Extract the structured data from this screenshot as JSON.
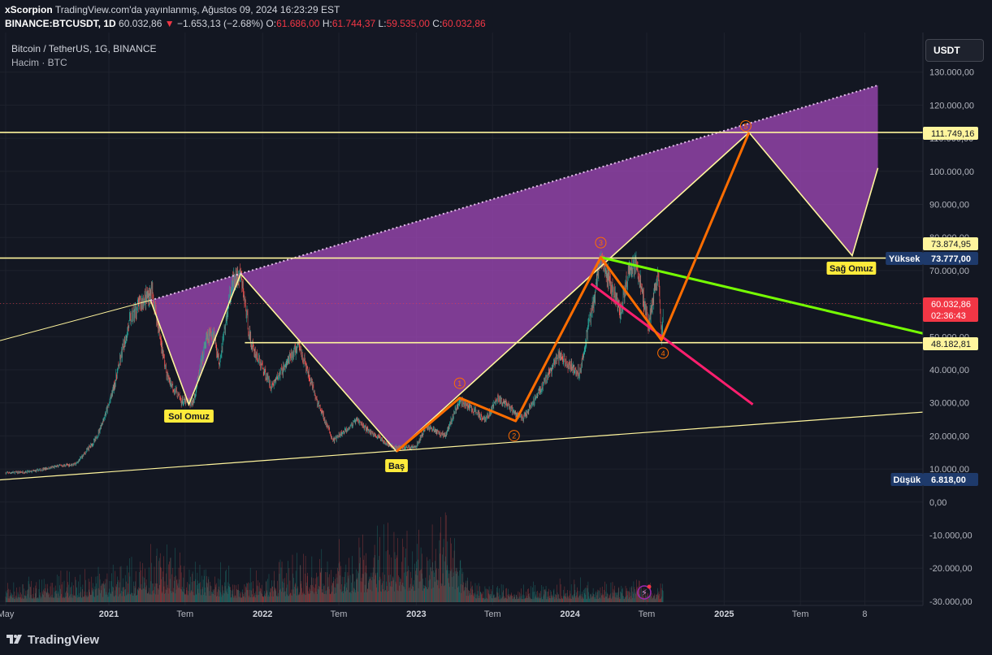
{
  "header": {
    "author": "xScorpion",
    "published": "TradingView.com'da yayınlanmış, Ağustos 09, 2024 16:23:29 EST",
    "symbol": "BINANCE:BTCUSDT, 1D",
    "price": "60.032,86",
    "change": "−1.653,13 (−2.68%)",
    "o_label": "O:",
    "o_val": "61.686,00",
    "h_label": "H:",
    "h_val": "61.744,37",
    "l_label": "L:",
    "l_val": "59.535,00",
    "c_label": "C:",
    "c_val": "60.032,86"
  },
  "legend": {
    "title": "Bitcoin / TetherUS, 1G, BINANCE",
    "volume": "Hacim · BTC"
  },
  "currency_button": "USDT",
  "branding": "TradingView",
  "colors": {
    "background": "#131722",
    "up": "#26a69a",
    "down": "#ef5350",
    "purple_fill": "#9c47b3",
    "yellow": "#fff59d",
    "orange": "#ff6d00",
    "green": "#76ff03",
    "pink": "#ff1f6e",
    "last_price": "#f23645"
  },
  "chart_data": {
    "type": "candlestick",
    "title": "Bitcoin / TetherUS, 1G, BINANCE",
    "y_axis": {
      "range": [
        -30000,
        135000
      ],
      "ticks": [
        "130.000,00",
        "120.000,00",
        "110.000,00",
        "100.000,00",
        "90.000,00",
        "80.000,00",
        "70.000,00",
        "60.000,00",
        "50.000,00",
        "40.000,00",
        "30.000,00",
        "20.000,00",
        "10.000,00",
        "0,00",
        "-10.000,00",
        "-20.000,00",
        "-30.000,00"
      ],
      "tick_values": [
        130000,
        120000,
        110000,
        100000,
        90000,
        80000,
        70000,
        60000,
        50000,
        40000,
        30000,
        20000,
        10000,
        0,
        -10000,
        -20000,
        -30000
      ]
    },
    "x_axis": {
      "labels": [
        "May",
        "2021",
        "Tem",
        "2022",
        "Tem",
        "2023",
        "Tem",
        "2024",
        "Tem",
        "2025",
        "Tem",
        "8"
      ],
      "dates": [
        "2020-05-01",
        "2021-01-01",
        "2021-07-01",
        "2022-01-01",
        "2022-07-01",
        "2023-01-01",
        "2023-07-01",
        "2024-01-01",
        "2024-07-01",
        "2025-01-01",
        "2025-07-01",
        "2025-12-01"
      ],
      "range": [
        "2020-05-01",
        "2026-01-01"
      ]
    },
    "price_path": [
      [
        "2020-05-01",
        8800
      ],
      [
        "2020-07-01",
        9200
      ],
      [
        "2020-09-01",
        10800
      ],
      [
        "2020-10-15",
        11500
      ],
      [
        "2020-12-01",
        19000
      ],
      [
        "2020-12-31",
        29000
      ],
      [
        "2021-01-15",
        36000
      ],
      [
        "2021-02-20",
        55000
      ],
      [
        "2021-03-15",
        60000
      ],
      [
        "2021-04-14",
        63500
      ],
      [
        "2021-05-19",
        38000
      ],
      [
        "2021-06-22",
        30500
      ],
      [
        "2021-07-20",
        30000
      ],
      [
        "2021-08-20",
        49000
      ],
      [
        "2021-09-07",
        51500
      ],
      [
        "2021-09-20",
        42000
      ],
      [
        "2021-10-20",
        66000
      ],
      [
        "2021-11-10",
        68500
      ],
      [
        "2021-12-04",
        48000
      ],
      [
        "2022-01-22",
        35000
      ],
      [
        "2022-03-28",
        47500
      ],
      [
        "2022-05-10",
        30500
      ],
      [
        "2022-06-18",
        18500
      ],
      [
        "2022-08-14",
        24800
      ],
      [
        "2022-09-10",
        21500
      ],
      [
        "2022-11-09",
        16500
      ],
      [
        "2022-12-31",
        16600
      ],
      [
        "2023-01-25",
        23000
      ],
      [
        "2023-03-10",
        20000
      ],
      [
        "2023-04-14",
        30800
      ],
      [
        "2023-06-15",
        25000
      ],
      [
        "2023-07-13",
        31500
      ],
      [
        "2023-09-11",
        25000
      ],
      [
        "2023-10-24",
        34500
      ],
      [
        "2023-12-05",
        44000
      ],
      [
        "2024-01-23",
        39000
      ],
      [
        "2024-02-28",
        62000
      ],
      [
        "2024-03-14",
        73700
      ],
      [
        "2024-04-30",
        57000
      ],
      [
        "2024-05-21",
        71500
      ],
      [
        "2024-06-07",
        71800
      ],
      [
        "2024-07-05",
        53500
      ],
      [
        "2024-07-29",
        70000
      ],
      [
        "2024-08-05",
        49000
      ],
      [
        "2024-08-09",
        60032
      ]
    ],
    "volume_profile": [
      [
        "2020-05-01",
        1
      ],
      [
        "2021-01-15",
        2
      ],
      [
        "2021-05-19",
        3
      ],
      [
        "2021-11-10",
        1.5
      ],
      [
        "2022-06-18",
        3
      ],
      [
        "2022-11-09",
        4
      ],
      [
        "2023-03-10",
        4.5
      ],
      [
        "2023-06-01",
        1
      ],
      [
        "2024-03-14",
        1.2
      ],
      [
        "2024-08-09",
        1
      ]
    ],
    "price_levels": [
      {
        "value": 111749.16,
        "label": "111.749,16"
      },
      {
        "value": 73874.95,
        "label": "73.874,95"
      },
      {
        "value": 73777.0,
        "label": "73.777,00",
        "tag": "Yüksek"
      },
      {
        "value": 60032.86,
        "label": "60.032,86",
        "countdown": "02:36:43"
      },
      {
        "value": 48182.81,
        "label": "48.182,81"
      },
      {
        "value": 6818.0,
        "label": "6.818,00",
        "tag": "Düşük"
      }
    ],
    "annotations": {
      "left_shoulder": "Sol Omuz",
      "head": "Baş",
      "right_shoulder": "Sağ Omuz",
      "waves": [
        "1",
        "2",
        "3",
        "4",
        "5"
      ]
    },
    "pattern_points": [
      [
        "2021-04-10",
        61000
      ],
      [
        "2021-11-10",
        69000
      ],
      [
        "2021-07-10",
        29500
      ],
      [
        "2022-11-15",
        15300
      ],
      [
        "2025-03-01",
        111749
      ],
      [
        "2025-11-01",
        74500
      ],
      [
        "2026-01-01",
        101000
      ],
      [
        "2026-01-01",
        126000
      ]
    ],
    "wave_points": [
      [
        "2022-11-15",
        15300
      ],
      [
        "2023-04-14",
        31500
      ],
      [
        "2023-08-25",
        24500
      ],
      [
        "2024-03-14",
        74000
      ],
      [
        "2024-08-05",
        49000
      ],
      [
        "2025-03-01",
        111749
      ]
    ]
  }
}
